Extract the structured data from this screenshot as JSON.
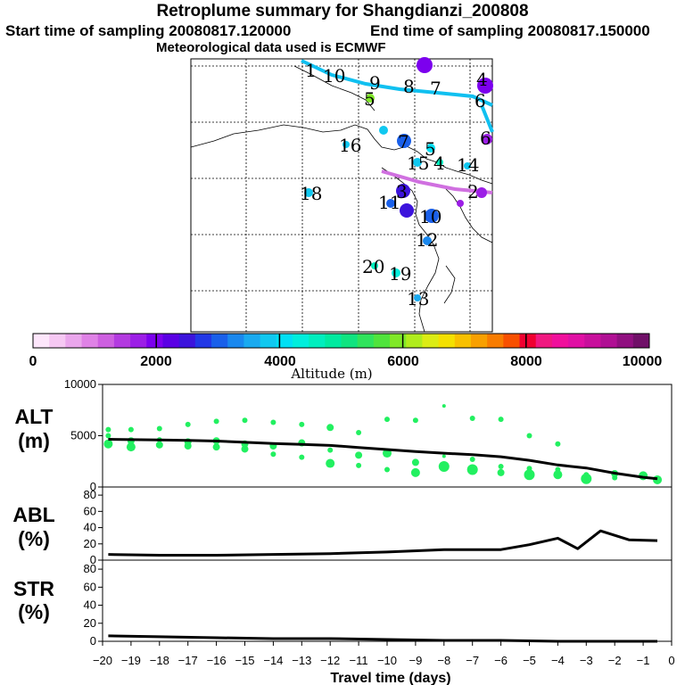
{
  "titles": {
    "main": "Retroplume summary for Shangdianzi_200808",
    "start": "Start time of sampling 20080817.120000",
    "end": "End time of sampling 20080817.150000",
    "met": "Meteorological data used is ECMWF"
  },
  "colorbar": {
    "tick_labels": [
      "0",
      "2000",
      "4000",
      "6000",
      "8000",
      "10000"
    ],
    "axis_label": "Altitude (m)",
    "colors": [
      "#fde6fb",
      "#f6c8f3",
      "#eaa6ec",
      "#df82e6",
      "#cd5fe0",
      "#b33ae0",
      "#9c1ee6",
      "#7c00ee",
      "#5a00e4",
      "#3c14dc",
      "#2238e6",
      "#1a60ea",
      "#1a88ee",
      "#1aaaf0",
      "#10c8f0",
      "#00e0f4",
      "#00eedc",
      "#00eebe",
      "#00eaa0",
      "#10e480",
      "#30e45c",
      "#50e43c",
      "#80e828",
      "#b0ec1c",
      "#dcec14",
      "#f4e000",
      "#f8c000",
      "#f8a000",
      "#f87c00",
      "#f85000",
      "#f00030",
      "#f01880",
      "#f0109c",
      "#e010a4",
      "#c8109c",
      "#b01094",
      "#901080",
      "#701068"
    ]
  },
  "map": {
    "labels": [
      {
        "text": "1",
        "color": "#000000"
      },
      {
        "text": "10",
        "color": "#000000"
      },
      {
        "text": "9",
        "color": "#000000"
      },
      {
        "text": "8",
        "color": "#000000"
      },
      {
        "text": "7",
        "color": "#000000"
      },
      {
        "text": "5",
        "color": "#000000"
      },
      {
        "text": "6",
        "color": "#000000"
      },
      {
        "text": "4",
        "color": "#000000"
      },
      {
        "text": "16",
        "color": "#000000"
      },
      {
        "text": "7",
        "color": "#000000"
      },
      {
        "text": "5",
        "color": "#000000"
      },
      {
        "text": "15",
        "color": "#000000"
      },
      {
        "text": "4",
        "color": "#000000"
      },
      {
        "text": "14",
        "color": "#000000"
      },
      {
        "text": "18",
        "color": "#000000"
      },
      {
        "text": "3",
        "color": "#000000"
      },
      {
        "text": "2",
        "color": "#000000"
      },
      {
        "text": "11",
        "color": "#000000"
      },
      {
        "text": "10",
        "color": "#000000"
      },
      {
        "text": "12",
        "color": "#000000"
      },
      {
        "text": "20",
        "color": "#000000"
      },
      {
        "text": "19",
        "color": "#000000"
      },
      {
        "text": "13",
        "color": "#000000"
      },
      {
        "text": "6",
        "color": "#000000"
      }
    ]
  },
  "chart_data": [
    {
      "type": "line",
      "panel": "ALT",
      "title": "ALT",
      "unit": "(m)",
      "x": [
        -19.8,
        -19,
        -18,
        -17,
        -16,
        -15,
        -14,
        -13,
        -12,
        -11,
        -10,
        -9,
        -8,
        -7,
        -6,
        -5,
        -4,
        -3,
        -2,
        -1,
        -0.5
      ],
      "values": [
        4650,
        4620,
        4580,
        4540,
        4480,
        4360,
        4240,
        4160,
        4050,
        3850,
        3650,
        3450,
        3300,
        3150,
        2950,
        2600,
        2150,
        1850,
        1350,
        950,
        800
      ],
      "scatter": {
        "x": [
          -19.8,
          -19.8,
          -19.8,
          -19,
          -19,
          -19,
          -18,
          -18,
          -18,
          -17,
          -17,
          -17,
          -16,
          -16,
          -16,
          -15,
          -15,
          -15,
          -14,
          -14,
          -14,
          -13,
          -13,
          -13,
          -12,
          -12,
          -12,
          -11,
          -11,
          -11,
          -10,
          -10,
          -10,
          -9,
          -9,
          -9,
          -8,
          -8,
          -8,
          -7,
          -7,
          -7,
          -6,
          -6,
          -6,
          -5,
          -5,
          -5,
          -4,
          -4,
          -4,
          -3,
          -3,
          -2,
          -2,
          -1,
          -0.5
        ],
        "y": [
          5600,
          5000,
          4200,
          5600,
          4500,
          3900,
          5700,
          4600,
          4100,
          6100,
          4400,
          4000,
          6400,
          4500,
          3900,
          6500,
          4200,
          3700,
          6300,
          4000,
          3200,
          6100,
          4300,
          2900,
          5800,
          3600,
          2300,
          5300,
          3100,
          2100,
          6600,
          3300,
          1700,
          6500,
          2400,
          1400,
          7900,
          3000,
          2000,
          6700,
          2700,
          1700,
          6600,
          2000,
          1400,
          5000,
          1800,
          1200,
          4200,
          1700,
          1200,
          1200,
          800,
          900,
          1300,
          1100,
          700
        ],
        "size": [
          3,
          3,
          5,
          3,
          4,
          5,
          3,
          3,
          4,
          3,
          4,
          4,
          3,
          4,
          4,
          3,
          4,
          4,
          3,
          4,
          3,
          3,
          4,
          3,
          4,
          3,
          5,
          3,
          4,
          3,
          3,
          5,
          3,
          3,
          4,
          5,
          2,
          2,
          6,
          3,
          3,
          6,
          3,
          3,
          4,
          3,
          3,
          6,
          3,
          3,
          5,
          3,
          6,
          3,
          4,
          5,
          5
        ]
      },
      "ylim": [
        0,
        10000
      ],
      "yticks": [
        0,
        5000,
        10000
      ],
      "xlim": [
        -20,
        0
      ],
      "line_color": "#000000",
      "marker_color": "#22f060"
    },
    {
      "type": "line",
      "panel": "ABL",
      "title": "ABL",
      "unit": "(%)",
      "x": [
        -19.8,
        -18,
        -16,
        -14,
        -12,
        -10,
        -8,
        -7,
        -6,
        -5,
        -4,
        -3.3,
        -2.5,
        -1.5,
        -0.5
      ],
      "values": [
        7,
        6,
        6,
        7,
        8,
        10,
        13,
        13,
        13,
        19,
        27,
        14,
        36,
        25,
        24
      ],
      "ylim": [
        0,
        90
      ],
      "yticks": [
        0,
        20,
        40,
        60,
        80
      ],
      "xlim": [
        -20,
        0
      ]
    },
    {
      "type": "line",
      "panel": "STR",
      "title": "STR",
      "unit": "(%)",
      "x": [
        -19.8,
        -18,
        -16,
        -14,
        -12,
        -10,
        -8,
        -6,
        -4,
        -2,
        -0.5
      ],
      "values": [
        6,
        5,
        4,
        3,
        3,
        2,
        1,
        1,
        0,
        0,
        0
      ],
      "ylim": [
        0,
        90
      ],
      "yticks": [
        0,
        20,
        40,
        60,
        80
      ],
      "xlim": [
        -20,
        0
      ],
      "xticks": [
        -20,
        -19,
        -18,
        -17,
        -16,
        -15,
        -14,
        -13,
        -12,
        -11,
        -10,
        -9,
        -8,
        -7,
        -6,
        -5,
        -4,
        -3,
        -2,
        -1,
        0
      ],
      "xlabel": "Travel time (days)"
    }
  ]
}
